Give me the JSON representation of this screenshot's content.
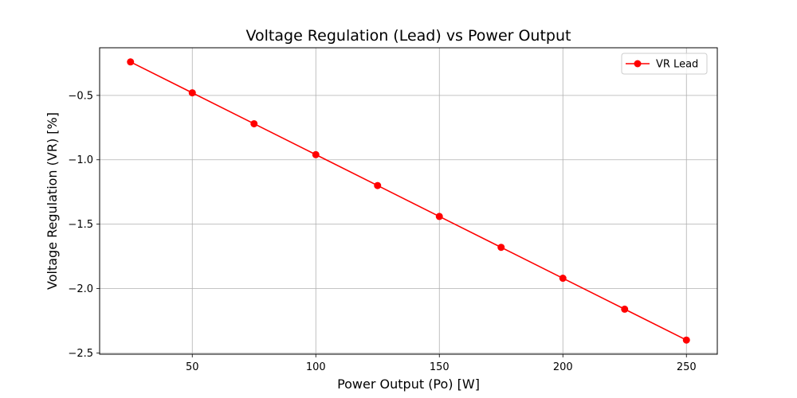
{
  "chart_data": {
    "type": "line",
    "title": "Voltage Regulation (Lead) vs Power Output",
    "xlabel": "Power Output (Po) [W]",
    "ylabel": "Voltage Regulation (VR) [%]",
    "xlim": [
      12.5,
      262.5
    ],
    "ylim": [
      -2.51,
      -0.13
    ],
    "xticks": [
      50,
      100,
      150,
      200,
      250
    ],
    "xtick_labels": [
      "50",
      "100",
      "150",
      "200",
      "250"
    ],
    "yticks": [
      -0.5,
      -1.0,
      -1.5,
      -2.0,
      -2.5
    ],
    "ytick_labels": [
      "−0.5",
      "−1.0",
      "−1.5",
      "−2.0",
      "−2.5"
    ],
    "grid": true,
    "legend_position": "top-right",
    "series": [
      {
        "name": "VR Lead",
        "color": "#ff0000",
        "marker": "circle",
        "x": [
          25,
          50,
          75,
          100,
          125,
          150,
          175,
          200,
          225,
          250
        ],
        "y": [
          -0.24,
          -0.48,
          -0.72,
          -0.96,
          -1.2,
          -1.44,
          -1.68,
          -1.92,
          -2.16,
          -2.4
        ]
      }
    ]
  }
}
